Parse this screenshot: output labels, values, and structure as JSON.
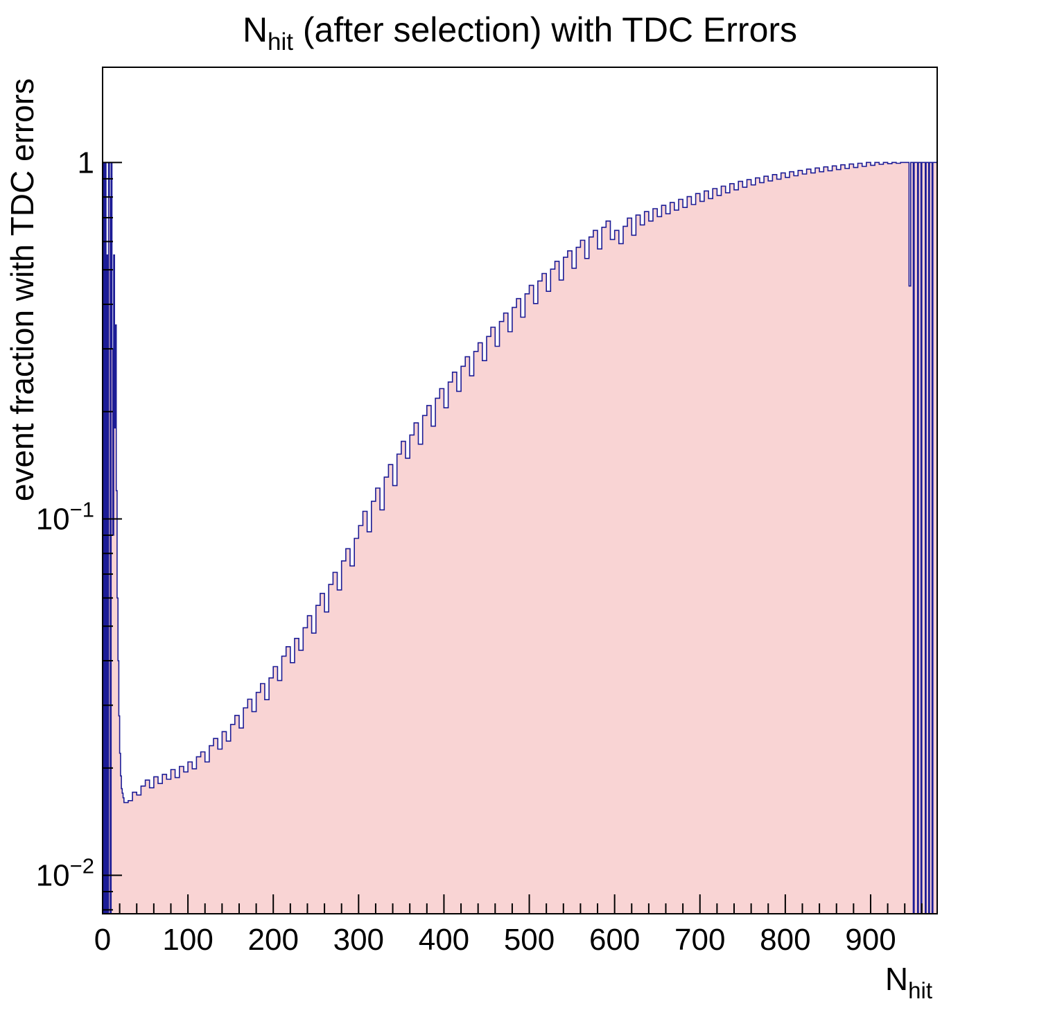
{
  "title": {
    "prefix": "N",
    "sub": "hit",
    "rest": " (after selection) with TDC Errors"
  },
  "x_axis_title": {
    "prefix": "N",
    "sub": "hit"
  },
  "y_axis_title": "event fraction with TDC errors",
  "colors": {
    "fill": "#f9d4d4",
    "line": "#1c1c96",
    "frame": "#000000",
    "text": "#000000"
  },
  "chart_data": {
    "type": "area",
    "style": "step-histogram",
    "title": "N_hit (after selection) with TDC Errors",
    "xlabel": "N_hit",
    "ylabel": "event fraction with TDC errors",
    "xlim": [
      0,
      978
    ],
    "ylim": [
      0.0078,
      1.85
    ],
    "yscale": "log",
    "grid": false,
    "legend": "none",
    "x_ticks": [
      0,
      100,
      200,
      300,
      400,
      500,
      600,
      700,
      800,
      900
    ],
    "x_minor_step": 20,
    "y_ticks": [
      {
        "value": 1,
        "base": "1",
        "exp": ""
      },
      {
        "value": 0.1,
        "base": "10",
        "exp": "−1"
      },
      {
        "value": 0.01,
        "base": "10",
        "exp": "−2"
      }
    ],
    "points": [
      [
        1,
        1
      ],
      [
        2,
        0.0078
      ],
      [
        3,
        1
      ],
      [
        4,
        0.0078
      ],
      [
        5,
        0.55
      ],
      [
        6,
        0.0078
      ],
      [
        7,
        1
      ],
      [
        8,
        0.8
      ],
      [
        9,
        0.0078
      ],
      [
        10,
        1
      ],
      [
        11,
        0.3
      ],
      [
        12,
        0.09
      ],
      [
        13,
        0.55
      ],
      [
        14,
        0.18
      ],
      [
        15,
        0.35
      ],
      [
        16,
        0.12
      ],
      [
        17,
        0.06
      ],
      [
        18,
        0.04
      ],
      [
        19,
        0.028
      ],
      [
        20,
        0.022
      ],
      [
        21,
        0.019
      ],
      [
        22,
        0.0175
      ],
      [
        23,
        0.017
      ],
      [
        24,
        0.0165
      ],
      [
        25,
        0.016
      ],
      [
        30,
        0.0162
      ],
      [
        35,
        0.0171
      ],
      [
        40,
        0.0168
      ],
      [
        45,
        0.0178
      ],
      [
        50,
        0.0185
      ],
      [
        55,
        0.0176
      ],
      [
        60,
        0.0189
      ],
      [
        65,
        0.0181
      ],
      [
        70,
        0.0192
      ],
      [
        75,
        0.0186
      ],
      [
        80,
        0.0198
      ],
      [
        85,
        0.0188
      ],
      [
        90,
        0.0202
      ],
      [
        95,
        0.0195
      ],
      [
        100,
        0.0208
      ],
      [
        105,
        0.0199
      ],
      [
        110,
        0.0215
      ],
      [
        115,
        0.0222
      ],
      [
        120,
        0.0208
      ],
      [
        125,
        0.0231
      ],
      [
        130,
        0.0242
      ],
      [
        135,
        0.0226
      ],
      [
        140,
        0.0253
      ],
      [
        145,
        0.0238
      ],
      [
        150,
        0.0265
      ],
      [
        155,
        0.0281
      ],
      [
        160,
        0.0259
      ],
      [
        165,
        0.0295
      ],
      [
        170,
        0.0312
      ],
      [
        175,
        0.0288
      ],
      [
        180,
        0.0326
      ],
      [
        185,
        0.0345
      ],
      [
        190,
        0.0311
      ],
      [
        195,
        0.0358
      ],
      [
        200,
        0.0385
      ],
      [
        205,
        0.0352
      ],
      [
        210,
        0.0412
      ],
      [
        215,
        0.0438
      ],
      [
        220,
        0.0395
      ],
      [
        225,
        0.0462
      ],
      [
        230,
        0.0428
      ],
      [
        235,
        0.0495
      ],
      [
        240,
        0.0535
      ],
      [
        245,
        0.0478
      ],
      [
        250,
        0.0572
      ],
      [
        255,
        0.0618
      ],
      [
        260,
        0.0548
      ],
      [
        265,
        0.0655
      ],
      [
        270,
        0.0708
      ],
      [
        275,
        0.0632
      ],
      [
        280,
        0.0762
      ],
      [
        285,
        0.0825
      ],
      [
        290,
        0.0738
      ],
      [
        295,
        0.0882
      ],
      [
        300,
        0.0958
      ],
      [
        305,
        0.105
      ],
      [
        310,
        0.092
      ],
      [
        315,
        0.112
      ],
      [
        320,
        0.122
      ],
      [
        325,
        0.106
      ],
      [
        330,
        0.131
      ],
      [
        335,
        0.142
      ],
      [
        340,
        0.124
      ],
      [
        345,
        0.152
      ],
      [
        350,
        0.165
      ],
      [
        355,
        0.148
      ],
      [
        360,
        0.172
      ],
      [
        365,
        0.186
      ],
      [
        370,
        0.162
      ],
      [
        375,
        0.195
      ],
      [
        380,
        0.208
      ],
      [
        385,
        0.182
      ],
      [
        390,
        0.218
      ],
      [
        395,
        0.232
      ],
      [
        400,
        0.205
      ],
      [
        405,
        0.242
      ],
      [
        410,
        0.258
      ],
      [
        415,
        0.228
      ],
      [
        420,
        0.268
      ],
      [
        425,
        0.285
      ],
      [
        430,
        0.252
      ],
      [
        435,
        0.295
      ],
      [
        440,
        0.312
      ],
      [
        445,
        0.278
      ],
      [
        450,
        0.325
      ],
      [
        455,
        0.345
      ],
      [
        460,
        0.305
      ],
      [
        465,
        0.358
      ],
      [
        470,
        0.378
      ],
      [
        475,
        0.335
      ],
      [
        480,
        0.392
      ],
      [
        485,
        0.415
      ],
      [
        490,
        0.368
      ],
      [
        495,
        0.428
      ],
      [
        500,
        0.452
      ],
      [
        505,
        0.402
      ],
      [
        510,
        0.465
      ],
      [
        515,
        0.488
      ],
      [
        520,
        0.435
      ],
      [
        525,
        0.502
      ],
      [
        530,
        0.528
      ],
      [
        535,
        0.468
      ],
      [
        540,
        0.542
      ],
      [
        545,
        0.565
      ],
      [
        550,
        0.505
      ],
      [
        555,
        0.578
      ],
      [
        560,
        0.605
      ],
      [
        565,
        0.538
      ],
      [
        570,
        0.618
      ],
      [
        575,
        0.645
      ],
      [
        580,
        0.572
      ],
      [
        585,
        0.658
      ],
      [
        590,
        0.685
      ],
      [
        595,
        0.608
      ],
      [
        600,
        0.645
      ],
      [
        605,
        0.592
      ],
      [
        610,
        0.662
      ],
      [
        615,
        0.698
      ],
      [
        620,
        0.625
      ],
      [
        625,
        0.712
      ],
      [
        630,
        0.668
      ],
      [
        635,
        0.728
      ],
      [
        640,
        0.685
      ],
      [
        645,
        0.742
      ],
      [
        650,
        0.705
      ],
      [
        655,
        0.758
      ],
      [
        660,
        0.718
      ],
      [
        665,
        0.772
      ],
      [
        670,
        0.735
      ],
      [
        675,
        0.788
      ],
      [
        680,
        0.748
      ],
      [
        685,
        0.802
      ],
      [
        690,
        0.762
      ],
      [
        695,
        0.818
      ],
      [
        700,
        0.778
      ],
      [
        705,
        0.832
      ],
      [
        710,
        0.792
      ],
      [
        715,
        0.845
      ],
      [
        720,
        0.808
      ],
      [
        725,
        0.858
      ],
      [
        730,
        0.822
      ],
      [
        735,
        0.872
      ],
      [
        740,
        0.838
      ],
      [
        745,
        0.885
      ],
      [
        750,
        0.852
      ],
      [
        755,
        0.895
      ],
      [
        760,
        0.865
      ],
      [
        765,
        0.905
      ],
      [
        770,
        0.878
      ],
      [
        775,
        0.915
      ],
      [
        780,
        0.888
      ],
      [
        785,
        0.925
      ],
      [
        790,
        0.898
      ],
      [
        795,
        0.935
      ],
      [
        800,
        0.908
      ],
      [
        805,
        0.942
      ],
      [
        810,
        0.918
      ],
      [
        815,
        0.95
      ],
      [
        820,
        0.928
      ],
      [
        825,
        0.958
      ],
      [
        830,
        0.935
      ],
      [
        835,
        0.965
      ],
      [
        840,
        0.942
      ],
      [
        845,
        0.972
      ],
      [
        850,
        0.948
      ],
      [
        855,
        0.978
      ],
      [
        860,
        0.955
      ],
      [
        865,
        0.985
      ],
      [
        870,
        0.962
      ],
      [
        875,
        0.99
      ],
      [
        880,
        0.968
      ],
      [
        885,
        0.995
      ],
      [
        890,
        0.975
      ],
      [
        895,
        1.0
      ],
      [
        900,
        0.982
      ],
      [
        905,
        1.0
      ],
      [
        910,
        0.988
      ],
      [
        915,
        1.0
      ],
      [
        920,
        0.992
      ],
      [
        925,
        1.0
      ],
      [
        930,
        0.995
      ],
      [
        935,
        1.0
      ],
      [
        940,
        1.0
      ],
      [
        943,
        1.0
      ],
      [
        945,
        0.45
      ],
      [
        947,
        1.0
      ],
      [
        949,
        1.0
      ],
      [
        950,
        0.0078
      ],
      [
        951,
        1.0
      ],
      [
        953,
        1.0
      ],
      [
        955,
        0.0078
      ],
      [
        956,
        1.0
      ],
      [
        958,
        1.0
      ],
      [
        959,
        0.0078
      ],
      [
        960,
        1.0
      ],
      [
        962,
        1.0
      ],
      [
        964,
        0.0078
      ],
      [
        965,
        1.0
      ],
      [
        967,
        1.0
      ],
      [
        968,
        0.0078
      ],
      [
        969,
        1.0
      ],
      [
        971,
        1.0
      ],
      [
        972,
        0.0078
      ],
      [
        973,
        1.0
      ],
      [
        975,
        1.0
      ]
    ]
  }
}
